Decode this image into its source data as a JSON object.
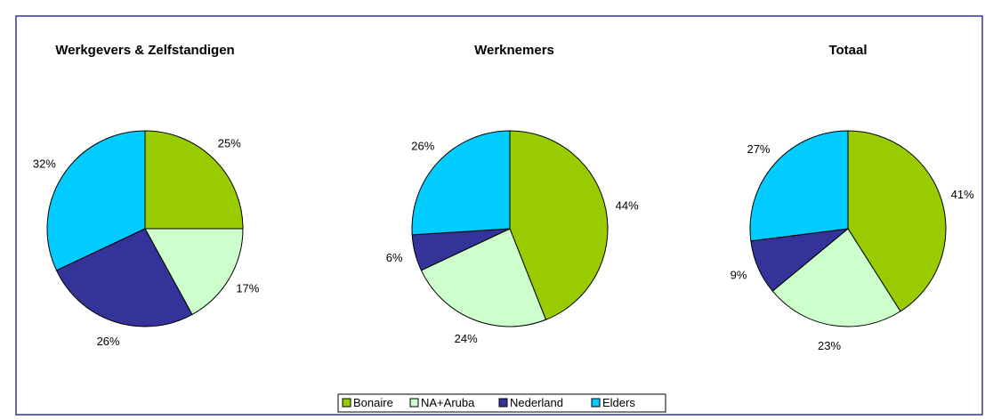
{
  "chart_data": [
    {
      "type": "pie",
      "title": "Werkgevers & Zelfstandigen",
      "categories": [
        "Bonaire",
        "NA+Aruba",
        "Nederland",
        "Elders"
      ],
      "colors": [
        "#99cc00",
        "#ccffcc",
        "#333399",
        "#00ccff"
      ],
      "values": [
        25,
        17,
        26,
        32
      ],
      "value_labels": [
        "25%",
        "17%",
        "26%",
        "32%"
      ]
    },
    {
      "type": "pie",
      "title": "Werknemers",
      "categories": [
        "Bonaire",
        "NA+Aruba",
        "Nederland",
        "Elders"
      ],
      "colors": [
        "#99cc00",
        "#ccffcc",
        "#333399",
        "#00ccff"
      ],
      "values": [
        44,
        24,
        6,
        26
      ],
      "value_labels": [
        "44%",
        "24%",
        "6%",
        "26%"
      ]
    },
    {
      "type": "pie",
      "title": "Totaal",
      "categories": [
        "Bonaire",
        "NA+Aruba",
        "Nederland",
        "Elders"
      ],
      "colors": [
        "#99cc00",
        "#ccffcc",
        "#333399",
        "#00ccff"
      ],
      "values": [
        41,
        23,
        9,
        27
      ],
      "value_labels": [
        "41%",
        "23%",
        "9%",
        "27%"
      ]
    }
  ]
}
